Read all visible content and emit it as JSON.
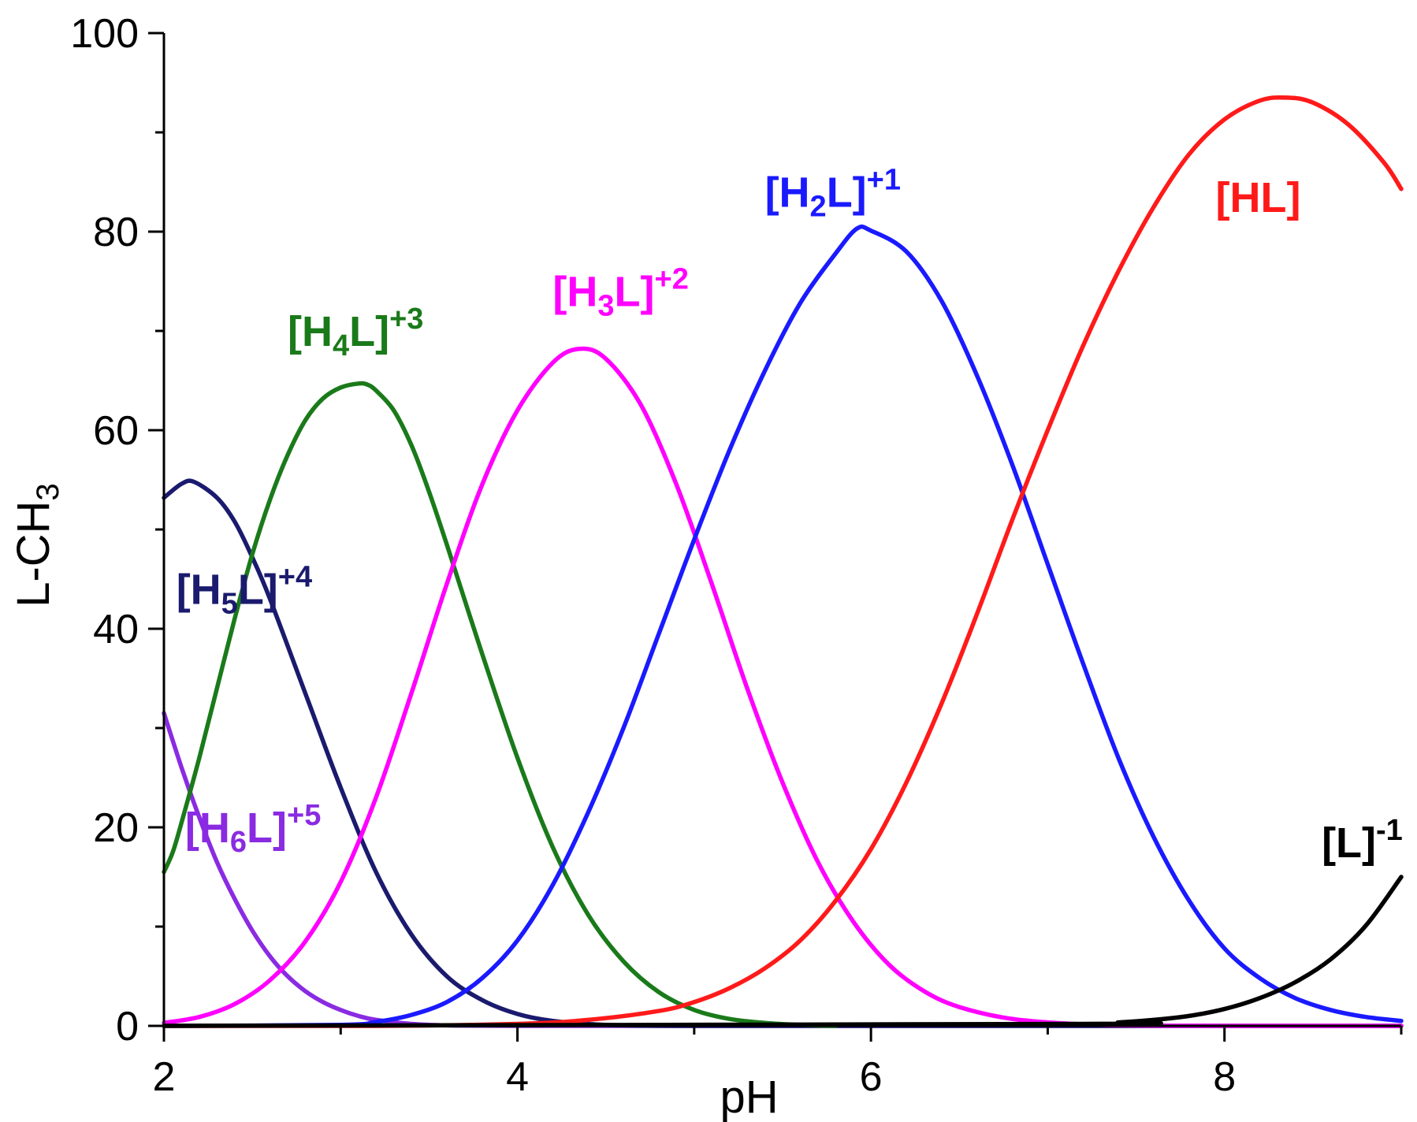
{
  "chart_data": {
    "type": "line",
    "title": "",
    "xlabel": "pH",
    "ylabel": "L-CH",
    "ylabel_sub": "3",
    "xlim": [
      2,
      9
    ],
    "ylim": [
      0,
      100
    ],
    "xticks": [
      2,
      4,
      6,
      8
    ],
    "xtick_labels": [
      "2",
      "4",
      "6",
      "8"
    ],
    "yticks": [
      0,
      20,
      40,
      60,
      80,
      100
    ],
    "ytick_labels": [
      "0",
      "20",
      "40",
      "60",
      "80",
      "100"
    ],
    "series": [
      {
        "name": "[H6L]+5",
        "label_main": "[H",
        "label_sub": "6",
        "label_tail": "L]",
        "label_sup": "+5",
        "color": "#8a2be2",
        "x": [
          2.0,
          2.1,
          2.2,
          2.3,
          2.4,
          2.5,
          2.6,
          2.7,
          2.8,
          2.9,
          3.0,
          3.1,
          3.2,
          3.4,
          3.6,
          4.0,
          5.0,
          6.0,
          7.0,
          8.0,
          9.0
        ],
        "y": [
          31.5,
          26.0,
          21.0,
          16.5,
          12.8,
          9.6,
          7.0,
          5.0,
          3.5,
          2.4,
          1.6,
          1.0,
          0.6,
          0.2,
          0.05,
          0,
          0,
          0,
          0,
          0,
          0
        ]
      },
      {
        "name": "[H5L]+4",
        "label_main": "[H",
        "label_sub": "5",
        "label_tail": "L]",
        "label_sup": "+4",
        "color": "#1a1a6e",
        "x": [
          2.0,
          2.1,
          2.17,
          2.3,
          2.4,
          2.5,
          2.6,
          2.8,
          3.0,
          3.2,
          3.4,
          3.6,
          3.8,
          4.0,
          4.2,
          4.5,
          5.0,
          6.0,
          9.0
        ],
        "y": [
          53.2,
          54.6,
          54.8,
          53.2,
          50.8,
          47.2,
          43.0,
          33.5,
          24.0,
          15.5,
          9.2,
          5.0,
          2.6,
          1.2,
          0.5,
          0.1,
          0,
          0,
          0
        ]
      },
      {
        "name": "[H4L]+3",
        "label_main": "[H",
        "label_sub": "4",
        "label_tail": "L]",
        "label_sup": "+3",
        "color": "#1a7a1a",
        "x": [
          2.0,
          2.05,
          2.1,
          2.2,
          2.3,
          2.4,
          2.5,
          2.6,
          2.7,
          2.8,
          2.9,
          3.0,
          3.1,
          3.15,
          3.2,
          3.3,
          3.4,
          3.5,
          3.6,
          3.8,
          4.0,
          4.2,
          4.4,
          4.6,
          4.8,
          5.0,
          5.2,
          5.4,
          5.6,
          5.8
        ],
        "y": [
          15.5,
          17.5,
          20.5,
          27.0,
          34.0,
          41.0,
          47.5,
          53.0,
          57.5,
          61.0,
          63.2,
          64.3,
          64.7,
          64.6,
          64.0,
          62.0,
          58.5,
          53.8,
          48.5,
          37.5,
          27.0,
          18.0,
          11.2,
          6.5,
          3.4,
          1.6,
          0.7,
          0.3,
          0.1,
          0.0
        ]
      },
      {
        "name": "[H3L]+2",
        "label_main": "[H",
        "label_sub": "3",
        "label_tail": "L]",
        "label_sup": "+2",
        "color": "#ff00ff",
        "x": [
          2.0,
          2.2,
          2.4,
          2.6,
          2.8,
          3.0,
          3.2,
          3.4,
          3.6,
          3.8,
          4.0,
          4.2,
          4.35,
          4.5,
          4.7,
          4.9,
          5.1,
          5.3,
          5.5,
          5.7,
          5.9,
          6.1,
          6.3,
          6.5,
          6.8,
          7.2,
          7.6,
          8.0,
          9.0
        ],
        "y": [
          0.3,
          0.9,
          2.2,
          4.6,
          8.5,
          14.5,
          23.0,
          33.5,
          44.5,
          54.5,
          62.0,
          66.8,
          68.2,
          67.2,
          62.5,
          54.5,
          44.5,
          34.0,
          24.5,
          16.5,
          10.5,
          6.2,
          3.5,
          1.9,
          0.7,
          0.15,
          0.03,
          0,
          0
        ]
      },
      {
        "name": "[H2L]+1",
        "label_main": "[H",
        "label_sub": "2",
        "label_tail": "L]",
        "label_sup": "+1",
        "color": "#1a1aff",
        "x": [
          2.0,
          3.0,
          3.2,
          3.4,
          3.6,
          3.8,
          4.0,
          4.2,
          4.4,
          4.6,
          4.8,
          5.0,
          5.2,
          5.4,
          5.6,
          5.8,
          5.92,
          6.0,
          6.2,
          6.4,
          6.6,
          6.8,
          7.0,
          7.2,
          7.4,
          7.6,
          7.8,
          8.0,
          8.2,
          8.4,
          8.6,
          8.8,
          9.0
        ],
        "y": [
          0,
          0.1,
          0.4,
          1.1,
          2.4,
          4.8,
          8.6,
          14.2,
          21.5,
          30.0,
          39.5,
          49.0,
          58.0,
          66.0,
          72.8,
          77.8,
          80.3,
          80.1,
          78.0,
          73.0,
          65.5,
          56.5,
          46.5,
          36.5,
          27.0,
          19.0,
          12.6,
          7.8,
          4.8,
          2.8,
          1.6,
          0.9,
          0.5
        ]
      },
      {
        "name": "[HL]",
        "label_main": "[HL]",
        "label_sub": "",
        "label_tail": "",
        "label_sup": "",
        "color": "#ff1a1a",
        "x": [
          2.0,
          3.2,
          4.0,
          4.4,
          4.8,
          5.0,
          5.2,
          5.4,
          5.6,
          5.8,
          6.0,
          6.2,
          6.4,
          6.6,
          6.8,
          7.0,
          7.2,
          7.4,
          7.6,
          7.8,
          8.0,
          8.2,
          8.35,
          8.5,
          8.7,
          8.9,
          9.0
        ],
        "y": [
          0,
          0,
          0.2,
          0.6,
          1.5,
          2.4,
          3.8,
          5.8,
          8.6,
          12.6,
          17.8,
          24.5,
          32.5,
          41.5,
          51.0,
          60.0,
          68.5,
          76.0,
          82.5,
          87.8,
          91.3,
          93.2,
          93.5,
          93.0,
          90.8,
          87.0,
          84.3
        ]
      },
      {
        "name": "[L]-1",
        "label_main": "[L]",
        "label_sub": "",
        "label_tail": "",
        "label_sup": "-1",
        "color": "#000000",
        "x": [
          2.0,
          7.2,
          7.4,
          7.6,
          7.8,
          8.0,
          8.2,
          8.4,
          8.6,
          8.8,
          9.0
        ],
        "y": [
          0,
          0.2,
          0.35,
          0.6,
          1.0,
          1.7,
          2.8,
          4.4,
          6.7,
          10.1,
          15.0
        ]
      }
    ]
  }
}
